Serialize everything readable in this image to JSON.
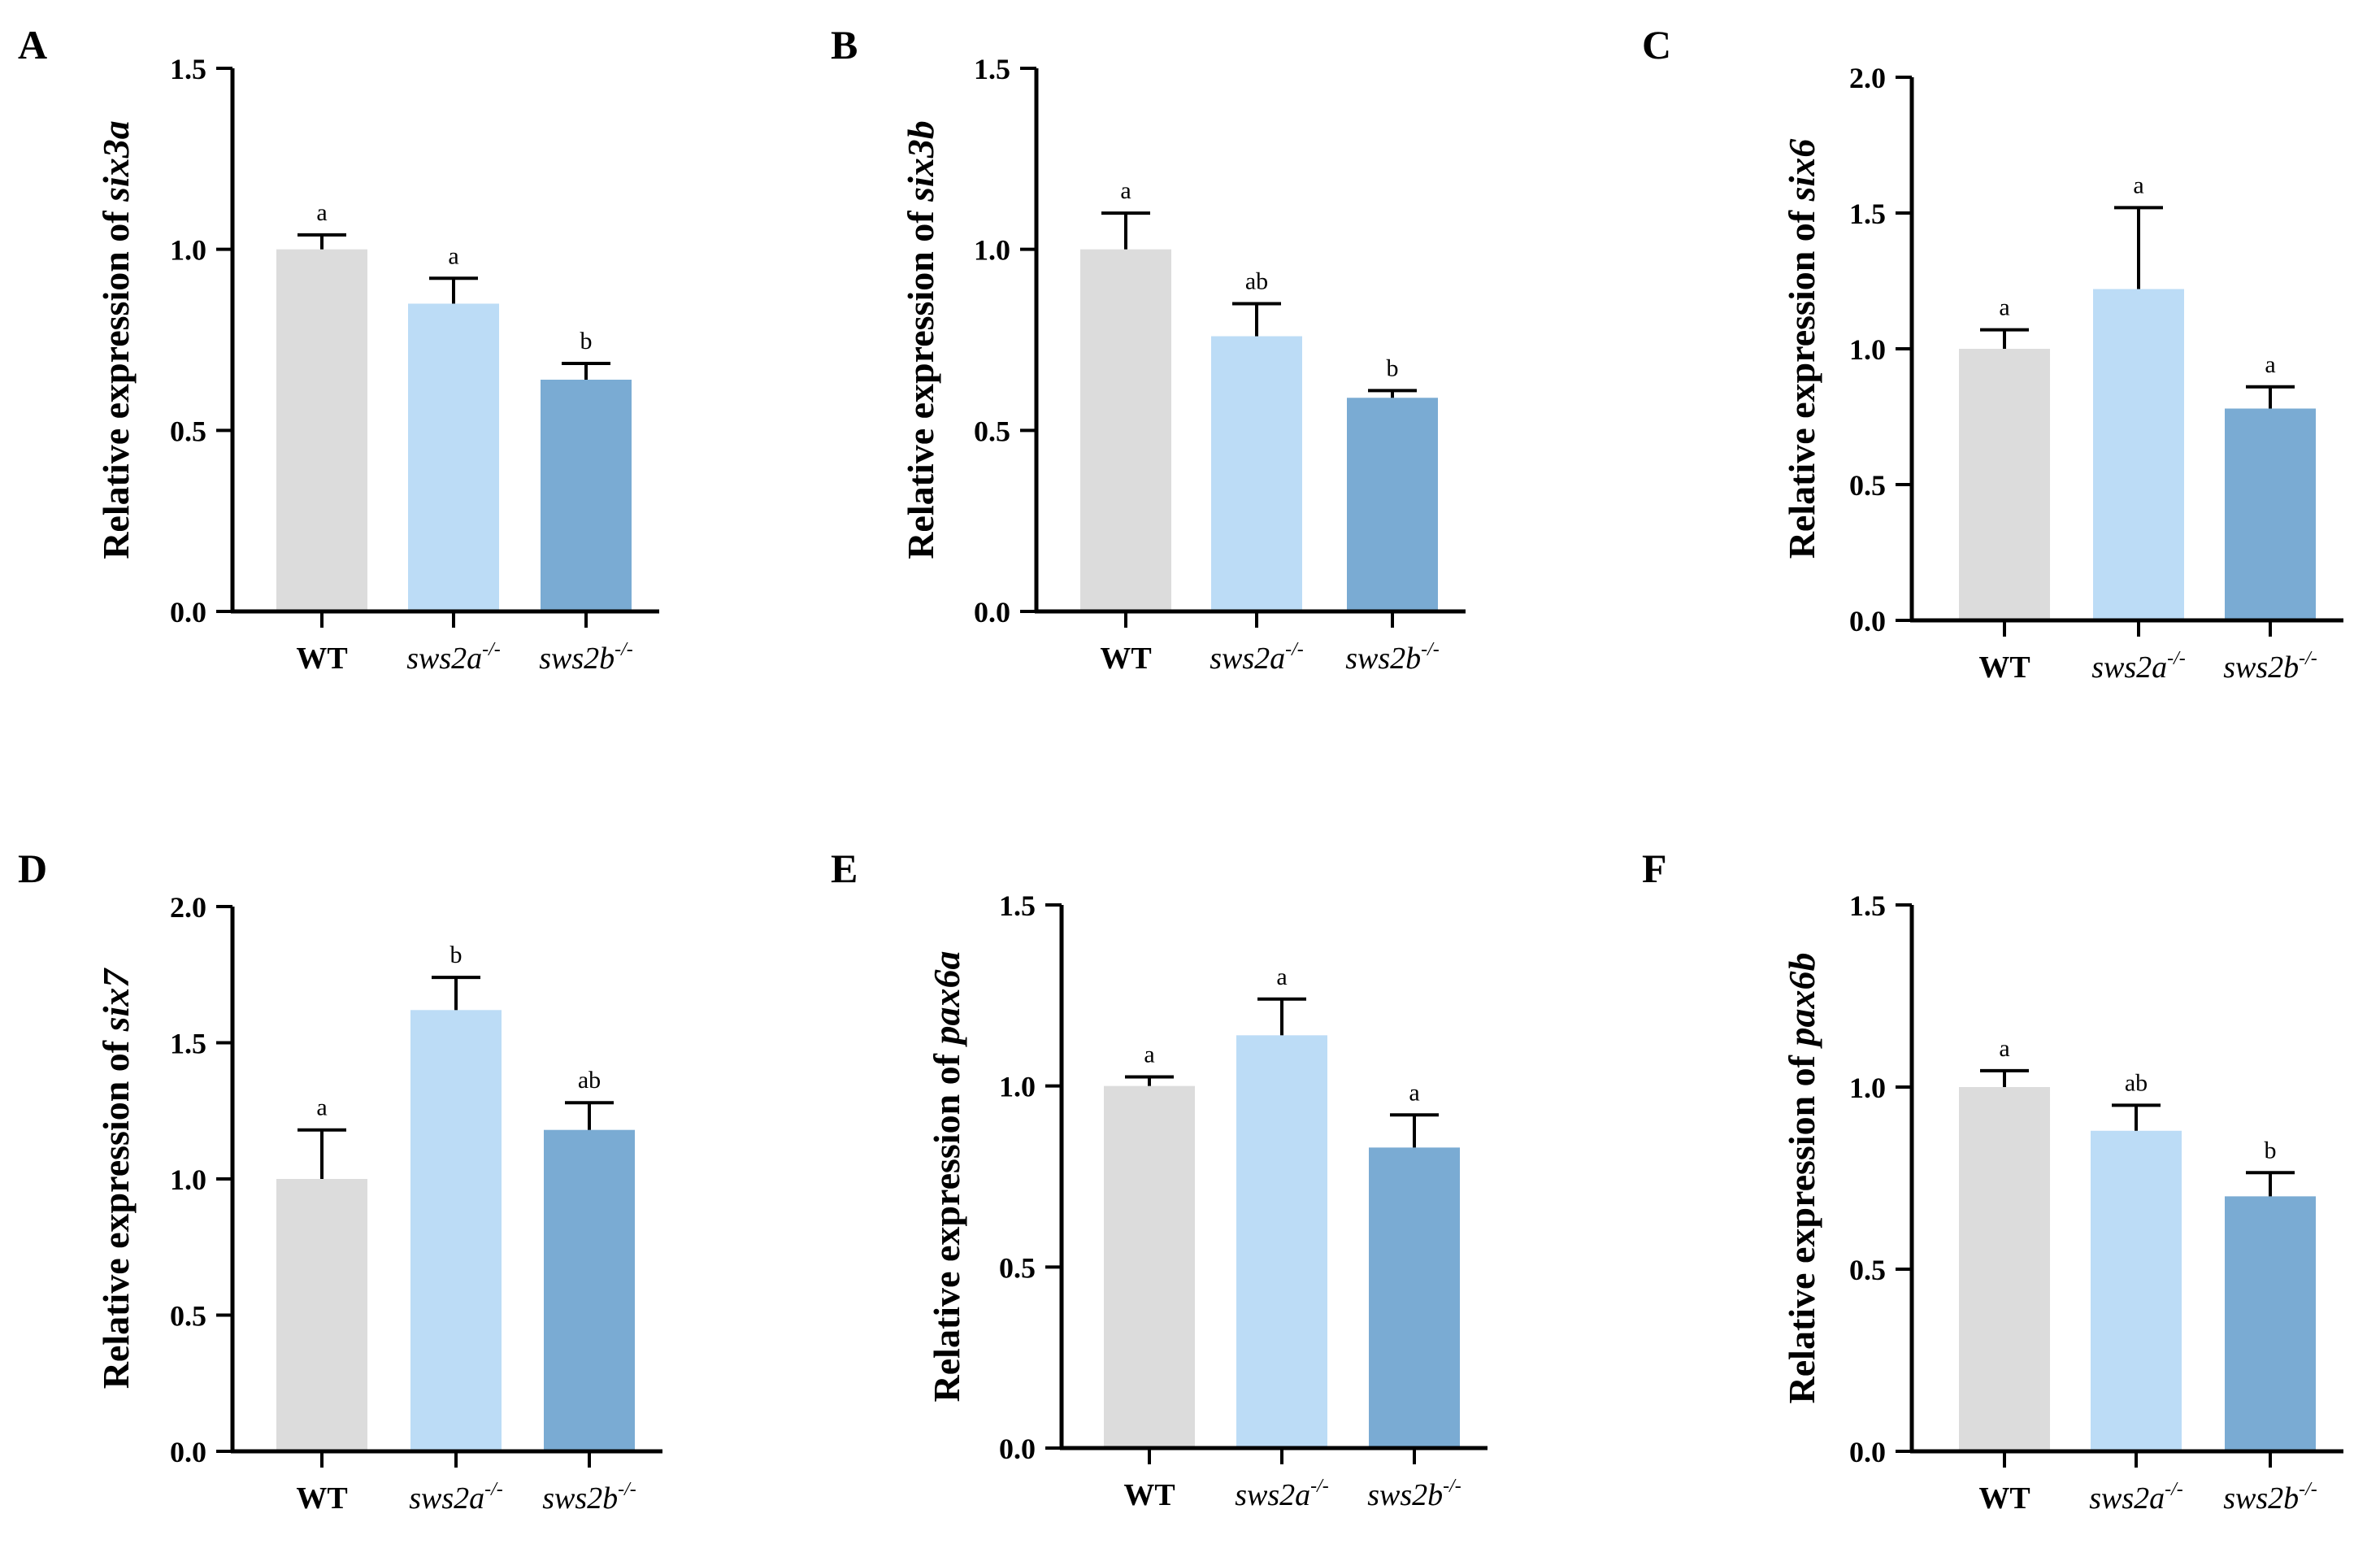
{
  "colors": {
    "WT": "#dcdcdc",
    "sws2a": "#bcdcf6",
    "sws2b": "#7aabd3",
    "axis": "#000000"
  },
  "categories": [
    {
      "base": "WT",
      "sup": "",
      "style": "bold"
    },
    {
      "base": "sws2a",
      "sup": "-/-",
      "style": "italic"
    },
    {
      "base": "sws2b",
      "sup": "-/-",
      "style": "italic"
    }
  ],
  "chart_data": [
    {
      "type": "bar",
      "panel": "A",
      "ylabel": {
        "prefix": "Relative expression of ",
        "gene": "six3a"
      },
      "ylim": [
        0,
        1.5
      ],
      "ticks": [
        "0.0",
        "0.5",
        "1.0",
        "1.5"
      ],
      "values": [
        1.0,
        0.85,
        0.64
      ],
      "errors": [
        0.04,
        0.07,
        0.045
      ],
      "sig": [
        "a",
        "a",
        "b"
      ]
    },
    {
      "type": "bar",
      "panel": "B",
      "ylabel": {
        "prefix": "Relative expression of ",
        "gene": "six3b"
      },
      "ylim": [
        0,
        1.5
      ],
      "ticks": [
        "0.0",
        "0.5",
        "1.0",
        "1.5"
      ],
      "values": [
        1.0,
        0.76,
        0.59
      ],
      "errors": [
        0.1,
        0.09,
        0.02
      ],
      "sig": [
        "a",
        "ab",
        "b"
      ]
    },
    {
      "type": "bar",
      "panel": "C",
      "ylabel": {
        "prefix": "Relative expression of ",
        "gene": "six6"
      },
      "ylim": [
        0,
        2.0
      ],
      "ticks": [
        "0.0",
        "0.5",
        "1.0",
        "1.5",
        "2.0"
      ],
      "values": [
        1.0,
        1.22,
        0.78
      ],
      "errors": [
        0.07,
        0.3,
        0.08
      ],
      "sig": [
        "a",
        "a",
        "a"
      ]
    },
    {
      "type": "bar",
      "panel": "D",
      "ylabel": {
        "prefix": "Relative expression of ",
        "gene": "six7"
      },
      "ylim": [
        0,
        2.0
      ],
      "ticks": [
        "0.0",
        "0.5",
        "1.0",
        "1.5",
        "2.0"
      ],
      "values": [
        1.0,
        1.62,
        1.18
      ],
      "errors": [
        0.18,
        0.12,
        0.1
      ],
      "sig": [
        "a",
        "b",
        "ab"
      ]
    },
    {
      "type": "bar",
      "panel": "E",
      "ylabel": {
        "prefix": "Relative expression of ",
        "gene": "pax6a"
      },
      "ylim": [
        0,
        1.5
      ],
      "ticks": [
        "0.0",
        "0.5",
        "1.0",
        "1.5"
      ],
      "values": [
        1.0,
        1.14,
        0.83
      ],
      "errors": [
        0.025,
        0.1,
        0.09
      ],
      "sig": [
        "a",
        "a",
        "a"
      ]
    },
    {
      "type": "bar",
      "panel": "F",
      "ylabel": {
        "prefix": "Relative expression of ",
        "gene": "pax6b"
      },
      "ylim": [
        0,
        1.5
      ],
      "ticks": [
        "0.0",
        "0.5",
        "1.0",
        "1.5"
      ],
      "values": [
        1.0,
        0.88,
        0.7
      ],
      "errors": [
        0.045,
        0.07,
        0.065
      ],
      "sig": [
        "a",
        "ab",
        "b"
      ]
    }
  ]
}
